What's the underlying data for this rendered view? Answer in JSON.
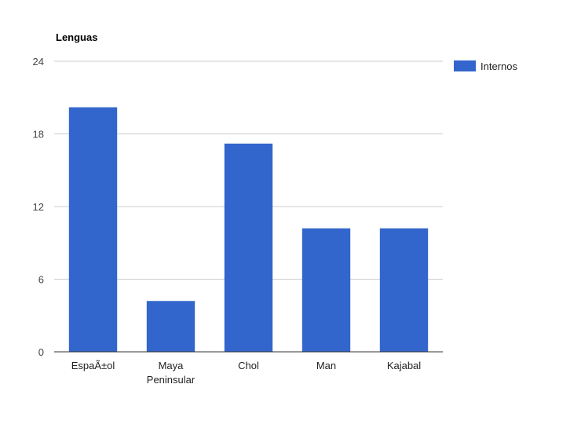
{
  "chart_data": {
    "type": "bar",
    "title": "Lenguas",
    "categories": [
      [
        "EspaÃ±ol"
      ],
      [
        "Maya",
        "Peninsular"
      ],
      [
        "Chol"
      ],
      [
        "Man"
      ],
      [
        "Kajabal"
      ]
    ],
    "series": [
      {
        "name": "Internos",
        "values": [
          20.2,
          4.2,
          17.2,
          10.2,
          10.2
        ],
        "color": "#3366cc"
      }
    ],
    "ylim": [
      0,
      24
    ],
    "yticks": [
      "0",
      "6",
      "12",
      "18",
      "24"
    ],
    "grid": true,
    "legend_position": "right"
  }
}
